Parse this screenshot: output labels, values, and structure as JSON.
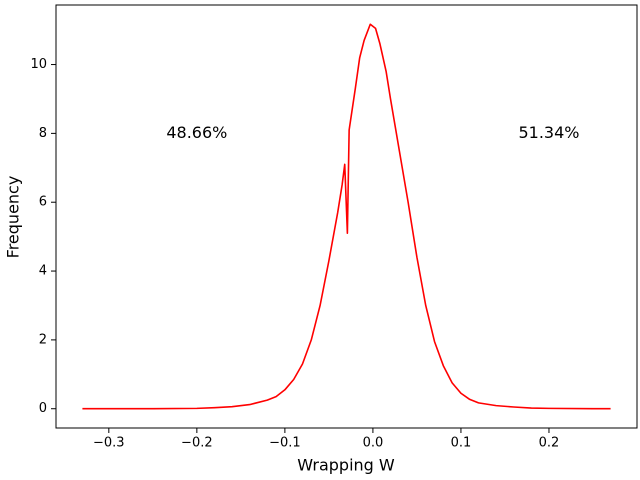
{
  "chart_data": {
    "type": "line",
    "xlabel": "Wrapping W",
    "ylabel": "Frequency",
    "color": "#ff0000",
    "x": [
      -0.33,
      -0.3,
      -0.25,
      -0.2,
      -0.18,
      -0.16,
      -0.14,
      -0.12,
      -0.11,
      -0.1,
      -0.09,
      -0.08,
      -0.07,
      -0.06,
      -0.05,
      -0.04,
      -0.035,
      -0.032,
      -0.029,
      -0.027,
      -0.02,
      -0.015,
      -0.01,
      -0.003,
      0.003,
      0.008,
      0.015,
      0.02,
      0.03,
      0.04,
      0.05,
      0.06,
      0.07,
      0.08,
      0.09,
      0.1,
      0.11,
      0.12,
      0.14,
      0.16,
      0.18,
      0.2,
      0.25,
      0.27
    ],
    "values": [
      0,
      0,
      0,
      0.01,
      0.03,
      0.06,
      0.12,
      0.25,
      0.35,
      0.55,
      0.85,
      1.3,
      2.0,
      3.0,
      4.3,
      5.7,
      6.5,
      7.1,
      5.1,
      8.1,
      9.3,
      10.2,
      10.7,
      11.17,
      11.05,
      10.6,
      9.8,
      9.0,
      7.5,
      6.0,
      4.4,
      3.0,
      1.95,
      1.25,
      0.75,
      0.45,
      0.27,
      0.17,
      0.09,
      0.05,
      0.02,
      0.01,
      0,
      0
    ],
    "xlim": [
      -0.36,
      0.3
    ],
    "ylim": [
      -0.56,
      11.73
    ],
    "xticks": [
      {
        "value": -0.3,
        "label": "−0.3"
      },
      {
        "value": -0.2,
        "label": "−0.2"
      },
      {
        "value": -0.1,
        "label": "−0.1"
      },
      {
        "value": 0,
        "label": "0.0"
      },
      0.1,
      0.2
    ],
    "yticks": [
      0,
      2,
      4,
      6,
      8,
      10
    ],
    "annotations": [
      {
        "text": "48.66%",
        "x": -0.2,
        "y": 8
      },
      {
        "text": "51.34%",
        "x": 0.2,
        "y": 8
      }
    ]
  }
}
